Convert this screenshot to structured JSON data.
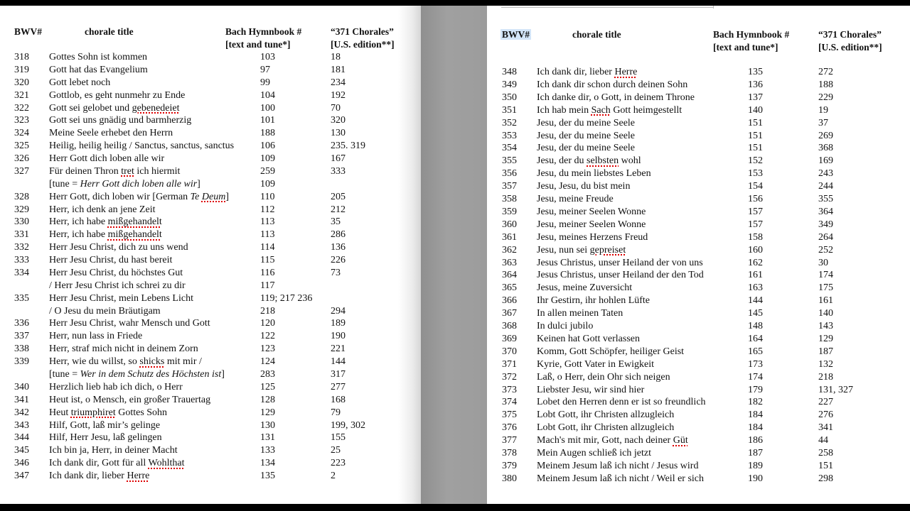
{
  "headers": {
    "bwv": "BWV#",
    "title": "chorale title",
    "hymnbook_1": "Bach Hymnbook #",
    "hymnbook_2": "[text and tune*]",
    "chorales_1": "“371 Chorales”",
    "chorales_2": "[U.S. edition**]"
  },
  "left_page": {
    "rows": [
      {
        "bwv": "318",
        "title": [
          {
            "t": "Gottes Sohn ist kommen"
          }
        ],
        "hymn": "103",
        "ch": "18"
      },
      {
        "bwv": "319",
        "title": [
          {
            "t": "Gott hat das Evangelium"
          }
        ],
        "hymn": "97",
        "ch": "181"
      },
      {
        "bwv": "320",
        "title": [
          {
            "t": "Gott lebet noch"
          }
        ],
        "hymn": "99",
        "ch": "234"
      },
      {
        "bwv": "321",
        "title": [
          {
            "t": "Gottlob, es geht nunmehr zu Ende"
          }
        ],
        "hymn": "104",
        "ch": "192"
      },
      {
        "bwv": "322",
        "title": [
          {
            "t": "Gott sei gelobet und "
          },
          {
            "t": "gebenedeiet",
            "s": true
          }
        ],
        "hymn": "100",
        "ch": "70"
      },
      {
        "bwv": "323",
        "title": [
          {
            "t": "Gott sei uns gnädig und barmherzig"
          }
        ],
        "hymn": "101",
        "ch": "320"
      },
      {
        "bwv": "324",
        "title": [
          {
            "t": "Meine Seele erhebet den Herrn"
          }
        ],
        "hymn": "188",
        "ch": "130"
      },
      {
        "bwv": "325",
        "title": [
          {
            "t": "Heilig, heilig heilig / Sanctus, sanctus, sanctus"
          }
        ],
        "hymn": "106",
        "ch": "235. 319"
      },
      {
        "bwv": "326",
        "title": [
          {
            "t": "Herr Gott dich loben alle wir"
          }
        ],
        "hymn": "109",
        "ch": "167"
      },
      {
        "bwv": "327",
        "title": [
          {
            "t": "Für deinen Thron "
          },
          {
            "t": "tret",
            "s": true
          },
          {
            "t": " ich hiermit"
          }
        ],
        "hymn": "259",
        "ch": "333"
      },
      {
        "bwv": "",
        "title": [
          {
            "t": "[tune = "
          },
          {
            "t": "Herr Gott dich loben alle wir",
            "i": true
          },
          {
            "t": "]"
          }
        ],
        "hymn": "109",
        "ch": ""
      },
      {
        "bwv": "328",
        "title": [
          {
            "t": "Herr Gott, dich loben wir [German "
          },
          {
            "t": "Te ",
            "i": true
          },
          {
            "t": "Deum",
            "i": true,
            "s": true
          },
          {
            "t": "]"
          }
        ],
        "hymn": "110",
        "ch": "205"
      },
      {
        "bwv": "329",
        "title": [
          {
            "t": "Herr, ich denk an jene Zeit"
          }
        ],
        "hymn": "112",
        "ch": "212"
      },
      {
        "bwv": "330",
        "title": [
          {
            "t": "Herr, ich habe "
          },
          {
            "t": "mißgehandelt",
            "s": true
          }
        ],
        "hymn": "113",
        "ch": "35"
      },
      {
        "bwv": "331",
        "title": [
          {
            "t": "Herr, ich habe "
          },
          {
            "t": "mißgehandelt",
            "s": true
          }
        ],
        "hymn": "113",
        "ch": "286"
      },
      {
        "bwv": "332",
        "title": [
          {
            "t": "Herr Jesu Christ, dich zu uns wend"
          }
        ],
        "hymn": "114",
        "ch": "136"
      },
      {
        "bwv": "333",
        "title": [
          {
            "t": "Herr Jesu Christ, du hast bereit"
          }
        ],
        "hymn": "115",
        "ch": "226"
      },
      {
        "bwv": "334",
        "title": [
          {
            "t": "Herr Jesu Christ, du höchstes Gut"
          }
        ],
        "hymn": "116",
        "ch": "73"
      },
      {
        "bwv": "",
        "title": [
          {
            "t": "/ Herr Jesu Christ ich schrei zu dir"
          }
        ],
        "hymn": "117",
        "ch": ""
      },
      {
        "bwv": "335",
        "title": [
          {
            "t": "Herr Jesu Christ, mein Lebens Licht"
          }
        ],
        "hymn": "119; 217 236",
        "ch": ""
      },
      {
        "bwv": "",
        "title": [
          {
            "t": "/ O Jesu du mein Bräutigam"
          }
        ],
        "hymn": "218",
        "ch": "294"
      },
      {
        "bwv": "336",
        "title": [
          {
            "t": "Herr Jesu Christ, wahr Mensch und Gott"
          }
        ],
        "hymn": "120",
        "ch": "189"
      },
      {
        "bwv": "337",
        "title": [
          {
            "t": "Herr, nun lass in Friede"
          }
        ],
        "hymn": "122",
        "ch": "190"
      },
      {
        "bwv": "338",
        "title": [
          {
            "t": "Herr, straf mich nicht in deinem Zorn"
          }
        ],
        "hymn": "123",
        "ch": "221"
      },
      {
        "bwv": "339",
        "title": [
          {
            "t": "Herr, wie du willst, so "
          },
          {
            "t": "shicks",
            "s": true
          },
          {
            "t": " mit mir /"
          }
        ],
        "hymn": "124",
        "ch": "144"
      },
      {
        "bwv": "",
        "title": [
          {
            "t": "[tune = "
          },
          {
            "t": "Wer in dem Schutz des Höchsten ist",
            "i": true
          },
          {
            "t": "]"
          }
        ],
        "hymn": "283",
        "ch": "317"
      },
      {
        "bwv": "340",
        "title": [
          {
            "t": "Herzlich lieb hab ich dich, o Herr"
          }
        ],
        "hymn": "125",
        "ch": "277"
      },
      {
        "bwv": "341",
        "title": [
          {
            "t": "Heut ist, o Mensch, ein großer Trauertag"
          }
        ],
        "hymn": "128",
        "ch": "168"
      },
      {
        "bwv": "342",
        "title": [
          {
            "t": "Heut "
          },
          {
            "t": "triumphiret",
            "s": true
          },
          {
            "t": " Gottes Sohn"
          }
        ],
        "hymn": "129",
        "ch": "79"
      },
      {
        "bwv": "343",
        "title": [
          {
            "t": "Hilf, Gott, laß mir’s gelinge"
          }
        ],
        "hymn": "130",
        "ch": "199, 302"
      },
      {
        "bwv": "344",
        "title": [
          {
            "t": "Hilf, Herr Jesu, laß gelingen"
          }
        ],
        "hymn": "131",
        "ch": "155"
      },
      {
        "bwv": "345",
        "title": [
          {
            "t": "Ich bin ja, Herr, in deiner Macht"
          }
        ],
        "hymn": "133",
        "ch": "25"
      },
      {
        "bwv": "346",
        "title": [
          {
            "t": "Ich dank dir, Gott für all "
          },
          {
            "t": "Wohlthat",
            "s": true
          }
        ],
        "hymn": "134",
        "ch": "223"
      },
      {
        "bwv": "347",
        "title": [
          {
            "t": "Ich dank dir, lieber "
          },
          {
            "t": "Herre",
            "s": true
          }
        ],
        "hymn": "135",
        "ch": "2"
      }
    ]
  },
  "right_page": {
    "rows": [
      {
        "bwv": "348",
        "title": [
          {
            "t": "Ich dank dir, lieber "
          },
          {
            "t": "Herre",
            "s": true
          }
        ],
        "hymn": "135",
        "ch": "272"
      },
      {
        "bwv": "349",
        "title": [
          {
            "t": "Ich dank dir schon durch deinen Sohn"
          }
        ],
        "hymn": "136",
        "ch": "188"
      },
      {
        "bwv": "350",
        "title": [
          {
            "t": "Ich danke dir, o Gott, in deinem Throne"
          }
        ],
        "hymn": "137",
        "ch": "229"
      },
      {
        "bwv": "351",
        "title": [
          {
            "t": "Ich hab mein "
          },
          {
            "t": "Sach",
            "s": true
          },
          {
            "t": " Gott heimgestellt"
          }
        ],
        "hymn": "140",
        "ch": "19"
      },
      {
        "bwv": "352",
        "title": [
          {
            "t": "Jesu, der du meine Seele"
          }
        ],
        "hymn": "151",
        "ch": "37"
      },
      {
        "bwv": "353",
        "title": [
          {
            "t": "Jesu, der du meine Seele"
          }
        ],
        "hymn": "151",
        "ch": "269"
      },
      {
        "bwv": "354",
        "title": [
          {
            "t": "Jesu, der du meine Seele"
          }
        ],
        "hymn": "151",
        "ch": "368"
      },
      {
        "bwv": "355",
        "title": [
          {
            "t": "Jesu, der du "
          },
          {
            "t": "selbsten",
            "s": true
          },
          {
            "t": " wohl"
          }
        ],
        "hymn": "152",
        "ch": "169"
      },
      {
        "bwv": "356",
        "title": [
          {
            "t": "Jesu, du mein liebstes Leben"
          }
        ],
        "hymn": "153",
        "ch": "243"
      },
      {
        "bwv": "357",
        "title": [
          {
            "t": "Jesu, Jesu, du bist mein"
          }
        ],
        "hymn": "154",
        "ch": "244"
      },
      {
        "bwv": "358",
        "title": [
          {
            "t": "Jesu, meine Freude"
          }
        ],
        "hymn": "156",
        "ch": "355"
      },
      {
        "bwv": "359",
        "title": [
          {
            "t": "Jesu, meiner Seelen Wonne"
          }
        ],
        "hymn": "157",
        "ch": "364"
      },
      {
        "bwv": "360",
        "title": [
          {
            "t": "Jesu, meiner Seelen Wonne"
          }
        ],
        "hymn": "157",
        "ch": "349"
      },
      {
        "bwv": "361",
        "title": [
          {
            "t": "Jesu, meines Herzens Freud"
          }
        ],
        "hymn": "158",
        "ch": "264"
      },
      {
        "bwv": "362",
        "title": [
          {
            "t": "Jesu, nun sei "
          },
          {
            "t": "gepreiset",
            "s": true
          }
        ],
        "hymn": "160",
        "ch": "252"
      },
      {
        "bwv": "363",
        "title": [
          {
            "t": "Jesus Christus, unser Heiland der von uns"
          }
        ],
        "hymn": "162",
        "ch": "30"
      },
      {
        "bwv": "364",
        "title": [
          {
            "t": "Jesus Christus, unser Heiland der den Tod"
          }
        ],
        "hymn": "161",
        "ch": "174"
      },
      {
        "bwv": "365",
        "title": [
          {
            "t": "Jesus, meine Zuversicht"
          }
        ],
        "hymn": "163",
        "ch": "175"
      },
      {
        "bwv": "366",
        "title": [
          {
            "t": "Ihr Gestirn, ihr hohlen Lüfte"
          }
        ],
        "hymn": "144",
        "ch": "161"
      },
      {
        "bwv": "367",
        "title": [
          {
            "t": "In allen meinen Taten"
          }
        ],
        "hymn": "145",
        "ch": "140"
      },
      {
        "bwv": "368",
        "title": [
          {
            "t": "In dulci jubilo"
          }
        ],
        "hymn": "148",
        "ch": "143"
      },
      {
        "bwv": "369",
        "title": [
          {
            "t": "Keinen hat Gott verlassen"
          }
        ],
        "hymn": "164",
        "ch": "129"
      },
      {
        "bwv": "370",
        "title": [
          {
            "t": "Komm, Gott Schöpfer, heiliger Geist"
          }
        ],
        "hymn": "165",
        "ch": "187"
      },
      {
        "bwv": "371",
        "title": [
          {
            "t": "Kyrie, Gott Vater in Ewigkeit"
          }
        ],
        "hymn": "173",
        "ch": "132"
      },
      {
        "bwv": "372",
        "title": [
          {
            "t": "Laß, o Herr, dein Ohr sich neigen"
          }
        ],
        "hymn": "174",
        "ch": "218"
      },
      {
        "bwv": "373",
        "title": [
          {
            "t": "Liebster Jesu, wir sind hier"
          }
        ],
        "hymn": "179",
        "ch": "131, 327"
      },
      {
        "bwv": "374",
        "title": [
          {
            "t": "Lobet den Herren denn er ist so freundlich"
          }
        ],
        "hymn": "182",
        "ch": "227"
      },
      {
        "bwv": "375",
        "title": [
          {
            "t": "Lobt Gott, ihr Christen allzugleich"
          }
        ],
        "hymn": "184",
        "ch": "276"
      },
      {
        "bwv": "376",
        "title": [
          {
            "t": "Lobt Gott, ihr Christen allzugleich"
          }
        ],
        "hymn": "184",
        "ch": "341"
      },
      {
        "bwv": "377",
        "title": [
          {
            "t": "Mach's mit mir, Gott, nach deiner "
          },
          {
            "t": "Güt",
            "s": true
          }
        ],
        "hymn": "186",
        "ch": "44"
      },
      {
        "bwv": "378",
        "title": [
          {
            "t": "Mein Augen schließ ich jetzt"
          }
        ],
        "hymn": "187",
        "ch": "258"
      },
      {
        "bwv": "379",
        "title": [
          {
            "t": "Meinem Jesum laß ich nicht / Jesus wird"
          }
        ],
        "hymn": "189",
        "ch": "151"
      },
      {
        "bwv": "380",
        "title": [
          {
            "t": "Meinem Jesum laß ich nicht / Weil er sich"
          }
        ],
        "hymn": "190",
        "ch": "298"
      }
    ]
  },
  "colors": {
    "spellcheck": "#dd0000",
    "selection_highlight": "#d3e5f8",
    "gutter": "#9a9a9a"
  }
}
